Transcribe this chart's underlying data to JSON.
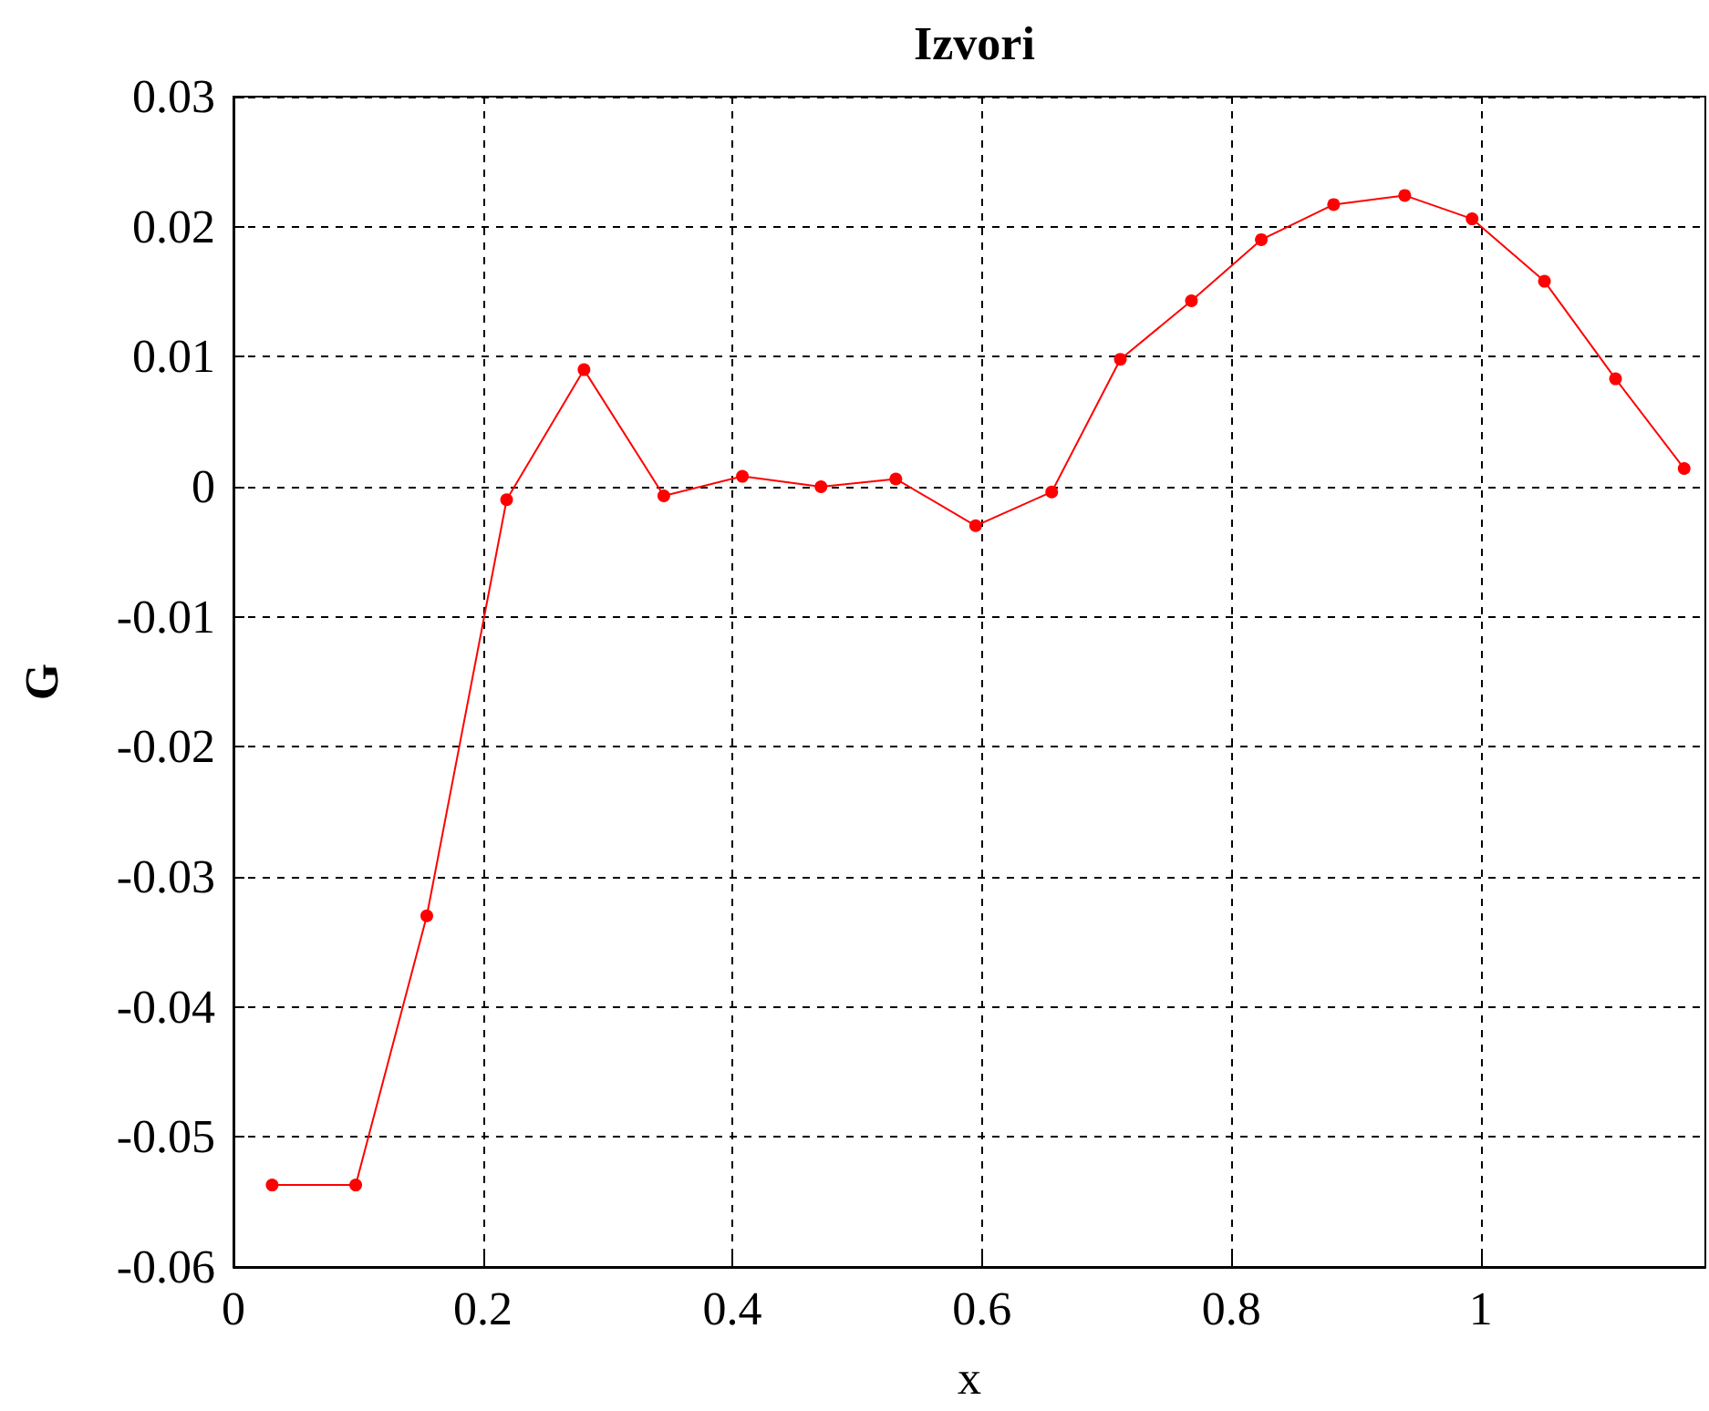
{
  "chart_data": {
    "type": "line",
    "title": "Izvori",
    "xlabel": "x",
    "ylabel": "G",
    "x": [
      0.031,
      0.098,
      0.155,
      0.219,
      0.281,
      0.345,
      0.408,
      0.471,
      0.531,
      0.595,
      0.656,
      0.711,
      0.768,
      0.824,
      0.882,
      0.939,
      0.993,
      1.051,
      1.108,
      1.163
    ],
    "series": [
      {
        "color": "#ff0000",
        "values": [
          -0.0537,
          -0.0537,
          -0.033,
          -0.001,
          0.009,
          -0.0007,
          0.0008,
          0,
          0.0006,
          -0.003,
          -0.0004,
          0.0098,
          0.0143,
          0.019,
          0.0217,
          0.0224,
          0.0206,
          0.0158,
          0.0083,
          0.0014
        ]
      }
    ],
    "xlim": [
      0,
      1.18
    ],
    "xticks": [
      0,
      0.2,
      0.4,
      0.6,
      0.8,
      1
    ],
    "ylim": [
      -0.06,
      0.03
    ],
    "yticks": [
      -0.06,
      -0.05,
      -0.04,
      -0.03,
      -0.02,
      -0.01,
      0,
      0.01,
      0.02,
      0.03
    ],
    "grid": true,
    "marker": "circle",
    "line_style": "solid"
  }
}
